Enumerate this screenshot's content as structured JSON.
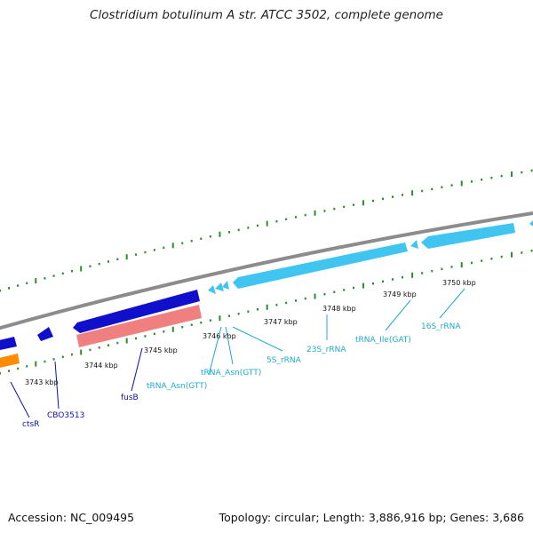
{
  "title": "Clostridium botulinum A str. ATCC 3502, complete genome",
  "footer": {
    "accession": "Accession: NC_009495",
    "stats": "Topology: circular; Length: 3,886,916 bp; Genes: 3,686"
  },
  "colors": {
    "backbone": "#8c8c8c",
    "tick_marks": "#2e8b2e",
    "cds_forward": "#1010cc",
    "cds_reverse": "#f08080",
    "cds_reverse_other": "#ff8c00",
    "rna": "#40c4f0",
    "cds_label": "#1010aa",
    "rna_label": "#20aacc"
  },
  "scale_ticks": [
    {
      "label": "3743 kbp"
    },
    {
      "label": "3744 kbp"
    },
    {
      "label": "3745 kbp"
    },
    {
      "label": "3746 kbp"
    },
    {
      "label": "3747 kbp"
    },
    {
      "label": "3748 kbp"
    },
    {
      "label": "3749 kbp"
    },
    {
      "label": "3750 kbp"
    }
  ],
  "feature_labels": [
    {
      "text": "ctsR",
      "kind": "cds"
    },
    {
      "text": "CBO3513",
      "kind": "cds"
    },
    {
      "text": "fusB",
      "kind": "cds"
    },
    {
      "text": "tRNA_Asn(GTT)",
      "kind": "rna"
    },
    {
      "text": "tRNA_Asn(GTT)",
      "kind": "rna"
    },
    {
      "text": "5S_rRNA",
      "kind": "rna"
    },
    {
      "text": "23S_rRNA",
      "kind": "rna"
    },
    {
      "text": "tRNA_Ile(GAT)",
      "kind": "rna"
    },
    {
      "text": "16S_rRNA",
      "kind": "rna"
    }
  ]
}
